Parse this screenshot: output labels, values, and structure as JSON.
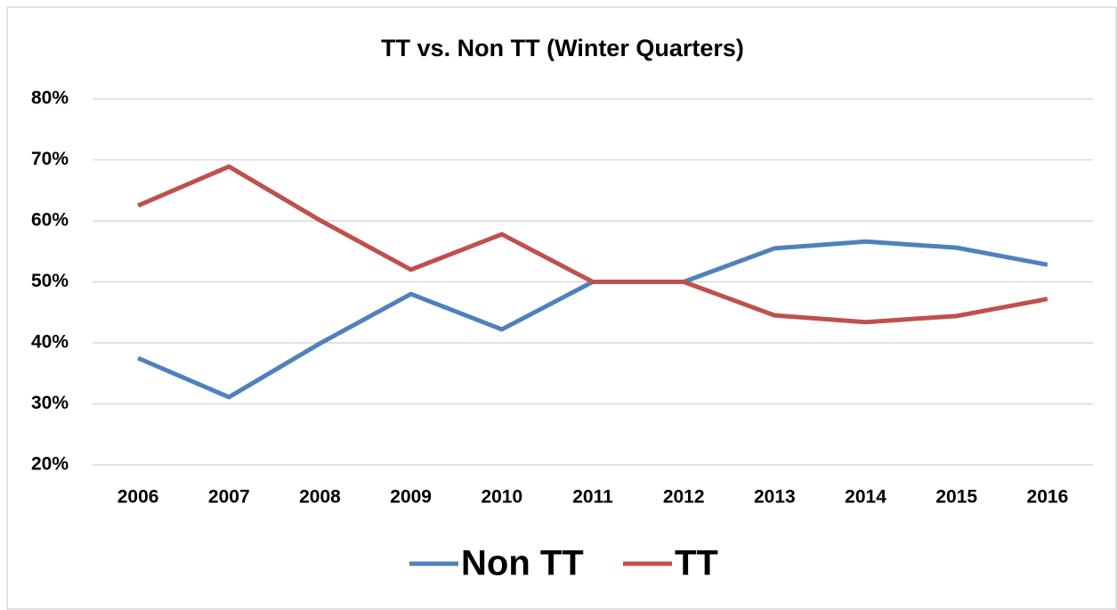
{
  "chart_data": {
    "type": "line",
    "title": "TT vs. Non TT (Winter Quarters)",
    "categories": [
      "2006",
      "2007",
      "2008",
      "2009",
      "2010",
      "2011",
      "2012",
      "2013",
      "2014",
      "2015",
      "2016"
    ],
    "series": [
      {
        "name": "Non TT",
        "color": "#4f81bd",
        "values": [
          37.5,
          31.1,
          39.9,
          48.0,
          42.2,
          50,
          50,
          55.5,
          56.6,
          55.6,
          52.8
        ]
      },
      {
        "name": "TT",
        "color": "#c0504d",
        "values": [
          62.5,
          68.9,
          60.1,
          52.0,
          57.8,
          50,
          50,
          44.5,
          43.4,
          44.4,
          47.2
        ]
      }
    ],
    "ylim": [
      20,
      80
    ],
    "yticks": [
      {
        "value": 20,
        "label": "20%"
      },
      {
        "value": 30,
        "label": "30%"
      },
      {
        "value": 40,
        "label": "40%"
      },
      {
        "value": 50,
        "label": "50%"
      },
      {
        "value": 60,
        "label": "60%"
      },
      {
        "value": 70,
        "label": "70%"
      },
      {
        "value": 80,
        "label": "80%"
      }
    ],
    "grid": true,
    "legend": "bottom"
  }
}
